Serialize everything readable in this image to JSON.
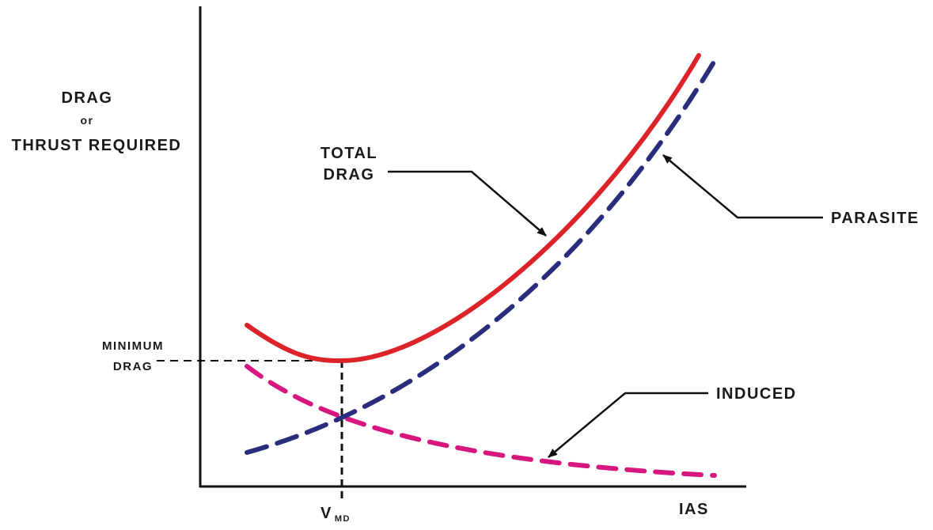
{
  "labels": {
    "y_axis_line1": "DRAG",
    "y_axis_line2": "or",
    "y_axis_line3": "THRUST REQUIRED",
    "x_axis": "IAS",
    "vmd_main": "V",
    "vmd_sub": "MD",
    "min_drag_line1": "MINIMUM",
    "min_drag_line2": "DRAG",
    "total_drag_line1": "TOTAL",
    "total_drag_line2": "DRAG",
    "parasite": "PARASITE",
    "induced": "INDUCED"
  },
  "colors": {
    "total_drag": "#dc2329",
    "parasite": "#2a2d7c",
    "induced": "#d8167f",
    "axes": "#111111"
  },
  "curves": [
    {
      "id": "total-drag",
      "style": "solid"
    },
    {
      "id": "parasite",
      "style": "dashed"
    },
    {
      "id": "induced",
      "style": "dashed"
    }
  ]
}
